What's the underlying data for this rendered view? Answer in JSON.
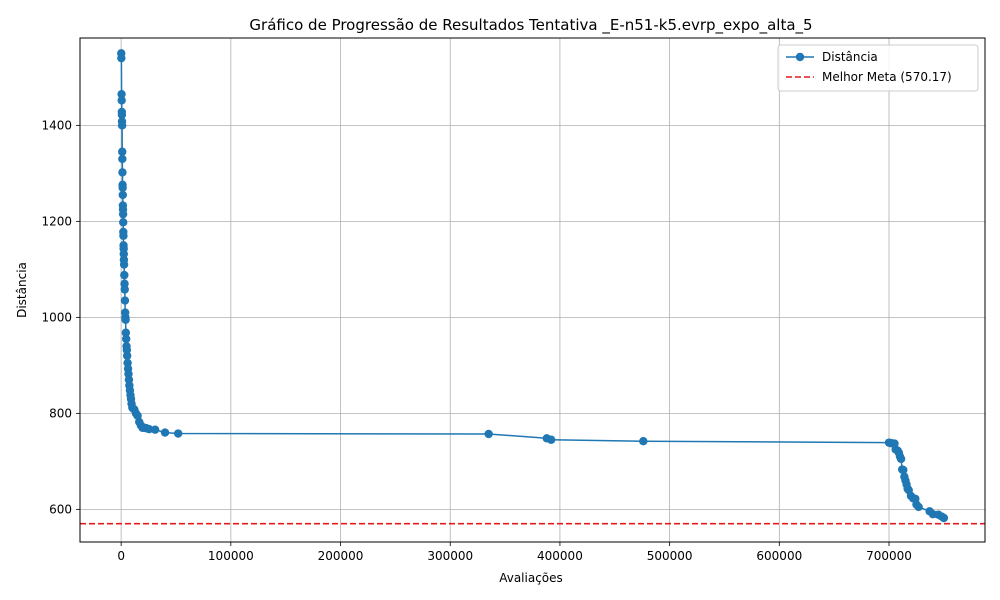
{
  "chart_data": {
    "type": "line",
    "title": "Gráfico de Progressão de Resultados Tentativa _E-n51-k5.evrp_expo_alta_5",
    "xlabel": "Avaliações",
    "ylabel": "Distância",
    "xlim": [
      -37500,
      787500
    ],
    "ylim": [
      532,
      1582
    ],
    "xticks": [
      0,
      100000,
      200000,
      300000,
      400000,
      500000,
      600000,
      700000
    ],
    "xtick_labels": [
      "0",
      "100000",
      "200000",
      "300000",
      "400000",
      "500000",
      "600000",
      "700000"
    ],
    "yticks": [
      600,
      800,
      1000,
      1200,
      1400
    ],
    "ytick_labels": [
      "600",
      "800",
      "1000",
      "1200",
      "1400"
    ],
    "grid": true,
    "legend_position": "top-right",
    "series": [
      {
        "name": "Distância",
        "color": "#1f77b4",
        "marker": "circle",
        "x": [
          100,
          200,
          400,
          500,
          600,
          700,
          800,
          900,
          1000,
          1100,
          1200,
          1300,
          1400,
          1500,
          1600,
          1700,
          1800,
          1900,
          2000,
          2100,
          2200,
          2300,
          2400,
          2500,
          2700,
          2900,
          3100,
          3300,
          3500,
          3700,
          3900,
          4100,
          4300,
          4600,
          4900,
          5200,
          5500,
          5900,
          6300,
          6700,
          7100,
          7500,
          8000,
          8500,
          9000,
          9500,
          10200,
          11000,
          12000,
          13500,
          15000,
          16500,
          18000,
          19500,
          21000,
          23000,
          25500,
          31000,
          40000,
          52000,
          335000,
          388000,
          392000,
          476000,
          700000,
          702000,
          705000,
          706000,
          708000,
          709000,
          710000,
          711000,
          712000,
          713000,
          714000,
          715000,
          716000,
          717000,
          718000,
          720000,
          722000,
          724000,
          725000,
          727000,
          737000,
          740000,
          745000,
          748000,
          750000
        ],
        "y": [
          1550,
          1540,
          1465,
          1452,
          1428,
          1422,
          1408,
          1400,
          1345,
          1330,
          1302,
          1276,
          1270,
          1255,
          1233,
          1225,
          1215,
          1198,
          1178,
          1170,
          1150,
          1143,
          1132,
          1120,
          1110,
          1088,
          1070,
          1058,
          1035,
          1010,
          1000,
          995,
          968,
          955,
          940,
          932,
          920,
          905,
          893,
          882,
          870,
          858,
          848,
          838,
          830,
          820,
          812,
          810,
          808,
          800,
          795,
          782,
          775,
          770,
          770,
          769,
          767,
          766,
          760,
          758,
          757,
          748,
          745,
          742,
          739,
          738,
          737,
          725,
          722,
          718,
          710,
          705,
          683,
          682,
          668,
          660,
          652,
          643,
          640,
          628,
          623,
          622,
          610,
          605,
          596,
          590,
          589,
          585,
          582
        ]
      },
      {
        "name": "Melhor Meta (570.17)",
        "color": "#e41a1c",
        "style": "dashed",
        "y": 570.17
      }
    ]
  }
}
